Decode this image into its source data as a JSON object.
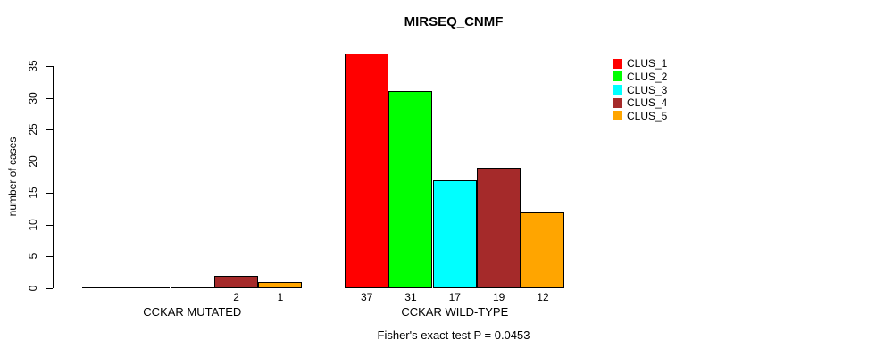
{
  "chart_data": {
    "type": "bar",
    "title": "MIRSEQ_CNMF",
    "ylabel": "number of cases",
    "xlabel": "",
    "annotation": "Fisher's exact test P = 0.0453",
    "ylim": [
      0,
      35
    ],
    "yticks": [
      0,
      5,
      10,
      15,
      20,
      25,
      30,
      35
    ],
    "grid": false,
    "legend_position": "top-right-inside",
    "categories": [
      "CCKAR MUTATED",
      "CCKAR WILD-TYPE"
    ],
    "series": [
      {
        "name": "CLUS_1",
        "color": "#FF0000",
        "values": [
          0,
          37
        ]
      },
      {
        "name": "CLUS_2",
        "color": "#00FF00",
        "values": [
          0,
          31
        ]
      },
      {
        "name": "CLUS_3",
        "color": "#00FFFF",
        "values": [
          0,
          17
        ]
      },
      {
        "name": "CLUS_4",
        "color": "#A52A2A",
        "values": [
          2,
          19
        ]
      },
      {
        "name": "CLUS_5",
        "color": "#FFA500",
        "values": [
          1,
          12
        ]
      }
    ],
    "bar_labels": {
      "show_zero_values": false
    }
  }
}
